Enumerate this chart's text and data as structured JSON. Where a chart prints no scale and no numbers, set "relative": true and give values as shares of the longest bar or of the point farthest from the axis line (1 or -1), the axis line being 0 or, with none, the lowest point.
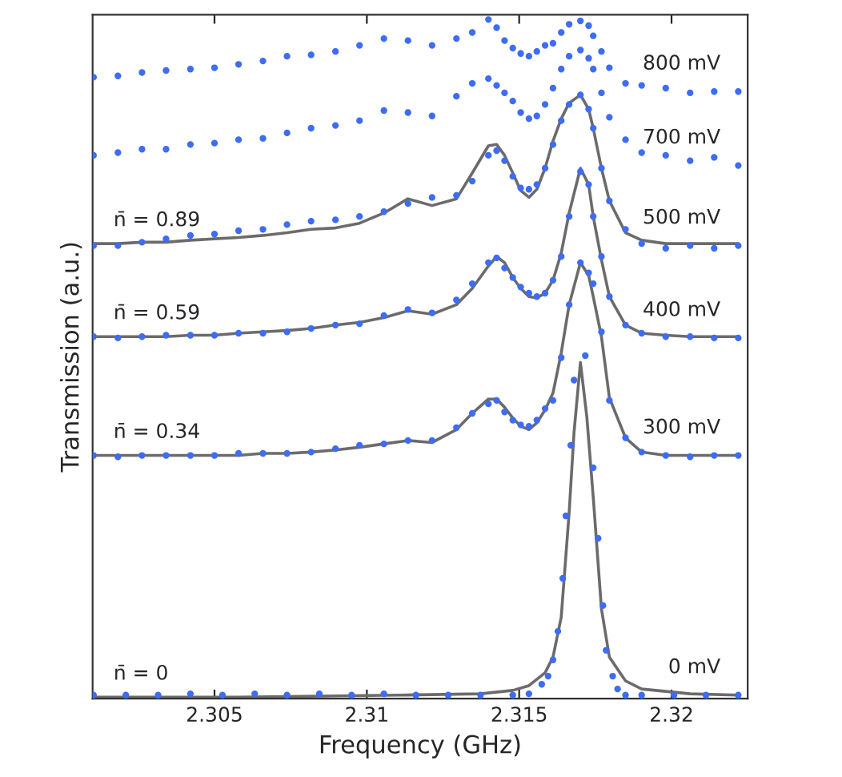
{
  "chart_data": {
    "type": "scatter",
    "relative": true,
    "xlabel": "Frequency (GHz)",
    "ylabel": "Transmission (a.u.)",
    "xlim": [
      2.301,
      2.3225
    ],
    "xticks": [
      2.305,
      2.31,
      2.315,
      2.32
    ],
    "x": [
      2.30103,
      2.30183,
      2.30262,
      2.30341,
      2.30421,
      2.305,
      2.30579,
      2.30659,
      2.30738,
      2.30817,
      2.30897,
      2.30976,
      2.31056,
      2.31135,
      2.31214,
      2.31294,
      2.31346,
      2.31399,
      2.31426,
      2.31452,
      2.31479,
      2.31505,
      2.31532,
      2.31558,
      2.31585,
      2.31611,
      2.31638,
      2.31664,
      2.31701,
      2.31728,
      2.31743,
      2.3177,
      2.31796,
      2.31849,
      2.31902,
      2.31981,
      2.32061,
      2.3214,
      2.32219
    ],
    "series": [
      {
        "name": "800 mV",
        "marker": "circle",
        "color": "#3d6cf5",
        "values": [
          0.915,
          0.917,
          0.922,
          0.925,
          0.927,
          0.929,
          0.934,
          0.939,
          0.946,
          0.948,
          0.953,
          0.962,
          0.972,
          0.969,
          0.962,
          0.972,
          0.981,
          1.0,
          0.988,
          0.969,
          0.958,
          0.95,
          0.946,
          0.953,
          0.962,
          0.965,
          0.981,
          0.993,
          0.998,
          0.991,
          0.976,
          0.953,
          0.929,
          0.906,
          0.903,
          0.899,
          0.892,
          0.894,
          0.894
        ]
      },
      {
        "name": "700 mV",
        "marker": "circle",
        "color": "#3d6cf5",
        "values": [
          0.8,
          0.804,
          0.809,
          0.809,
          0.816,
          0.818,
          0.823,
          0.825,
          0.833,
          0.84,
          0.844,
          0.851,
          0.866,
          0.863,
          0.858,
          0.887,
          0.906,
          0.913,
          0.903,
          0.892,
          0.88,
          0.863,
          0.854,
          0.858,
          0.875,
          0.899,
          0.927,
          0.946,
          0.955,
          0.943,
          0.927,
          0.892,
          0.856,
          0.823,
          0.804,
          0.8,
          0.792,
          0.797,
          0.785
        ]
      },
      {
        "name": "n̄ = 0.89",
        "type": "line",
        "color": "#6b6b6b",
        "values": [
          0.67,
          0.67,
          0.672,
          0.672,
          0.675,
          0.677,
          0.679,
          0.682,
          0.686,
          0.691,
          0.693,
          0.7,
          0.715,
          0.736,
          0.726,
          0.736,
          0.774,
          0.814,
          0.816,
          0.8,
          0.774,
          0.748,
          0.738,
          0.75,
          0.781,
          0.821,
          0.854,
          0.877,
          0.889,
          0.868,
          0.84,
          0.781,
          0.733,
          0.686,
          0.675,
          0.67,
          0.67,
          0.67,
          0.67
        ]
      },
      {
        "name": "500 mV",
        "marker": "circle",
        "color": "#3d6cf5",
        "values": [
          0.667,
          0.667,
          0.672,
          0.677,
          0.682,
          0.684,
          0.689,
          0.691,
          0.698,
          0.703,
          0.705,
          0.71,
          0.717,
          0.729,
          0.738,
          0.741,
          0.762,
          0.8,
          0.807,
          0.792,
          0.769,
          0.752,
          0.75,
          0.757,
          0.781,
          0.816,
          0.851,
          0.875,
          0.889,
          0.868,
          0.84,
          0.781,
          0.733,
          0.691,
          0.67,
          0.663,
          0.667,
          0.663,
          0.667
        ]
      },
      {
        "name": "n̄ = 0.59",
        "type": "line",
        "color": "#6b6b6b",
        "values": [
          0.533,
          0.533,
          0.533,
          0.533,
          0.535,
          0.535,
          0.538,
          0.54,
          0.542,
          0.545,
          0.55,
          0.554,
          0.561,
          0.571,
          0.566,
          0.58,
          0.604,
          0.637,
          0.651,
          0.642,
          0.62,
          0.604,
          0.592,
          0.59,
          0.597,
          0.616,
          0.656,
          0.715,
          0.781,
          0.757,
          0.71,
          0.646,
          0.592,
          0.55,
          0.538,
          0.535,
          0.533,
          0.533,
          0.533
        ]
      },
      {
        "name": "400 mV",
        "marker": "circle",
        "color": "#3d6cf5",
        "values": [
          0.533,
          0.531,
          0.533,
          0.535,
          0.535,
          0.535,
          0.538,
          0.538,
          0.54,
          0.545,
          0.55,
          0.552,
          0.564,
          0.573,
          0.568,
          0.587,
          0.611,
          0.642,
          0.649,
          0.634,
          0.62,
          0.606,
          0.597,
          0.592,
          0.597,
          0.616,
          0.651,
          0.71,
          0.776,
          0.757,
          0.71,
          0.651,
          0.592,
          0.55,
          0.538,
          0.533,
          0.533,
          0.531,
          0.531
        ]
      },
      {
        "name": "n̄ = 0.34",
        "type": "line",
        "color": "#6b6b6b",
        "values": [
          0.358,
          0.358,
          0.358,
          0.358,
          0.358,
          0.358,
          0.358,
          0.361,
          0.361,
          0.363,
          0.366,
          0.37,
          0.375,
          0.38,
          0.377,
          0.396,
          0.42,
          0.441,
          0.441,
          0.429,
          0.413,
          0.401,
          0.396,
          0.406,
          0.425,
          0.45,
          0.509,
          0.58,
          0.642,
          0.623,
          0.592,
          0.533,
          0.443,
          0.384,
          0.363,
          0.358,
          0.358,
          0.358,
          0.358
        ]
      },
      {
        "name": "300 mV",
        "marker": "circle",
        "color": "#3d6cf5",
        "values": [
          0.358,
          0.356,
          0.358,
          0.358,
          0.358,
          0.358,
          0.361,
          0.361,
          0.361,
          0.363,
          0.368,
          0.373,
          0.375,
          0.38,
          0.38,
          0.399,
          0.42,
          0.434,
          0.439,
          0.422,
          0.41,
          0.403,
          0.401,
          0.41,
          0.427,
          0.439,
          0.502,
          0.58,
          0.642,
          0.627,
          0.611,
          0.54,
          0.439,
          0.384,
          0.363,
          0.358,
          0.356,
          0.358,
          0.358
        ]
      },
      {
        "name": "n̄ = 0",
        "type": "line",
        "color": "#6b6b6b",
        "x": [
          2.30103,
          2.30579,
          2.31108,
          2.31373,
          2.31479,
          2.31532,
          2.31585,
          2.31611,
          2.31638,
          2.31664,
          2.3168,
          2.31701,
          2.31722,
          2.31743,
          2.3177,
          2.31796,
          2.31849,
          2.31902,
          2.32061,
          2.32219
        ],
        "values": [
          0.002,
          0.002,
          0.005,
          0.007,
          0.012,
          0.019,
          0.038,
          0.061,
          0.12,
          0.274,
          0.392,
          0.495,
          0.415,
          0.297,
          0.132,
          0.061,
          0.026,
          0.014,
          0.007,
          0.005
        ]
      },
      {
        "name": "0 mV",
        "marker": "circle",
        "color": "#3d6cf5",
        "x": [
          2.30103,
          2.30209,
          2.30315,
          2.30421,
          2.30526,
          2.30632,
          2.30738,
          2.30844,
          2.3095,
          2.31056,
          2.31161,
          2.31267,
          2.31373,
          2.31479,
          2.31532,
          2.31574,
          2.31595,
          2.31611,
          2.31627,
          2.31643,
          2.31653,
          2.31669,
          2.3168,
          2.31717,
          2.31743,
          2.31759,
          2.31775,
          2.31785,
          2.31807,
          2.31823,
          2.31849,
          2.31902,
          2.32008,
          2.32113,
          2.32219
        ],
        "values": [
          0.005,
          0.005,
          0.005,
          0.007,
          0.005,
          0.007,
          0.005,
          0.007,
          0.005,
          0.007,
          0.005,
          0.005,
          0.005,
          0.005,
          0.007,
          0.021,
          0.033,
          0.057,
          0.099,
          0.177,
          0.269,
          0.373,
          0.469,
          0.505,
          0.34,
          0.236,
          0.137,
          0.071,
          0.033,
          0.014,
          0.005,
          0.005,
          0.005,
          0.005,
          0.005
        ]
      }
    ]
  }
}
